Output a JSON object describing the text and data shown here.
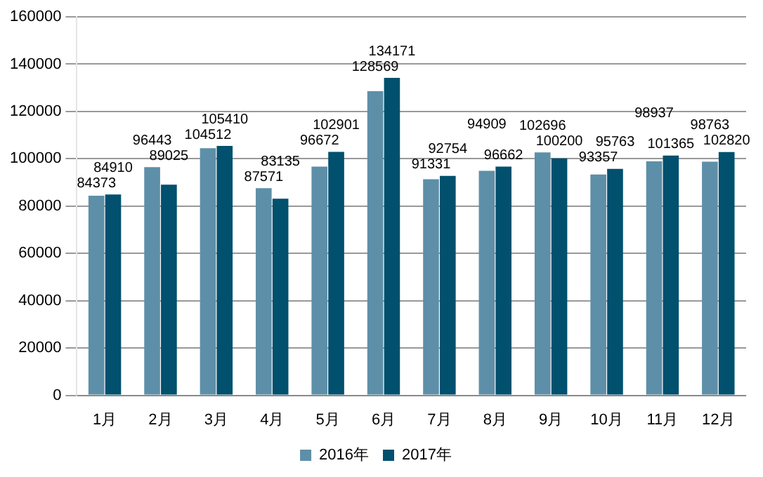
{
  "chart_data": {
    "type": "bar",
    "categories": [
      "1月",
      "2月",
      "3月",
      "4月",
      "5月",
      "6月",
      "7月",
      "8月",
      "9月",
      "10月",
      "11月",
      "12月"
    ],
    "series": [
      {
        "name": "2016年",
        "color": "#5e8fa8",
        "values": [
          84373,
          96443,
          104512,
          87571,
          96672,
          128569,
          91331,
          94909,
          102696,
          93357,
          98937,
          98763
        ]
      },
      {
        "name": "2017年",
        "color": "#00506e",
        "values": [
          84910,
          89025,
          105410,
          83135,
          102901,
          134171,
          92754,
          96662,
          100200,
          95763,
          101365,
          102820
        ]
      }
    ],
    "ylim": [
      0,
      160000
    ],
    "yticks": [
      0,
      20000,
      40000,
      60000,
      80000,
      100000,
      120000,
      140000,
      160000
    ],
    "grid": "y",
    "legend": "bottom",
    "data_labels": true
  }
}
